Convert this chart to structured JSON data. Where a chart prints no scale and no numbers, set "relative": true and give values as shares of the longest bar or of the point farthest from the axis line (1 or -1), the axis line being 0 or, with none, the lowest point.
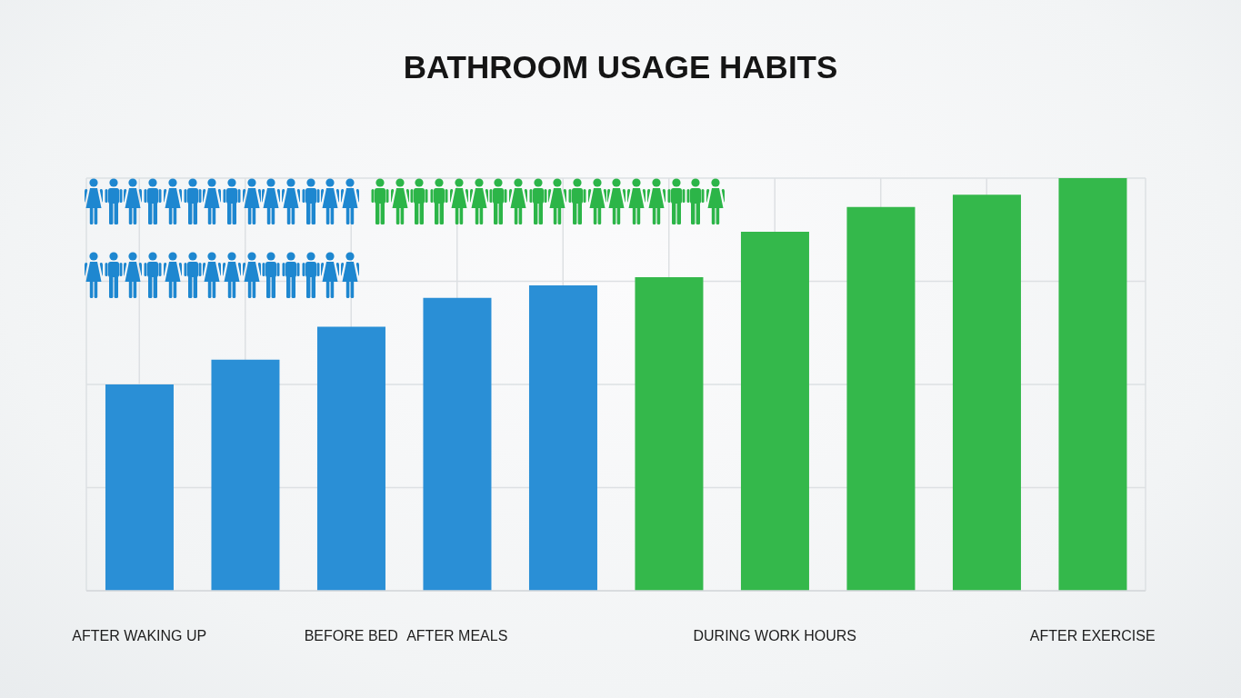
{
  "chart_data": {
    "type": "bar",
    "title": "BATHROOM USAGE HABITS",
    "categories": [
      "AFTER WAKING UP",
      null,
      "BEFORE BED",
      "AFTER MEALS",
      null,
      null,
      "DURING WORK HOURS",
      null,
      null,
      "AFTER EXERCISE"
    ],
    "values": [
      0.5,
      0.56,
      0.64,
      0.71,
      0.74,
      0.76,
      0.87,
      0.93,
      0.96,
      1
    ],
    "colors": [
      "#2a8fd6",
      "#2a8fd6",
      "#2a8fd6",
      "#2a8fd6",
      "#2a8fd6",
      "#34b84b",
      "#34b84b",
      "#34b84b",
      "#34b84b",
      "#34b84b"
    ],
    "relative": true,
    "grid": true
  }
}
